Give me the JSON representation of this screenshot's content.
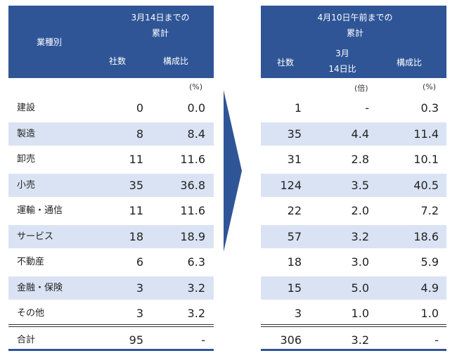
{
  "left_table": {
    "header": {
      "industry_label": "業種別",
      "period_label": "3月14日までの\n累計",
      "count_label": "社数",
      "ratio_label": "構成比"
    },
    "unit_ratio": "(%)",
    "rows": [
      {
        "label": "建設",
        "count": "0",
        "ratio": "0.0"
      },
      {
        "label": "製造",
        "count": "8",
        "ratio": "8.4"
      },
      {
        "label": "卸売",
        "count": "11",
        "ratio": "11.6"
      },
      {
        "label": "小売",
        "count": "35",
        "ratio": "36.8"
      },
      {
        "label": "運輸・通信",
        "count": "11",
        "ratio": "11.6"
      },
      {
        "label": "サービス",
        "count": "18",
        "ratio": "18.9"
      },
      {
        "label": "不動産",
        "count": "6",
        "ratio": "6.3"
      },
      {
        "label": "金融・保険",
        "count": "3",
        "ratio": "3.2"
      },
      {
        "label": "その他",
        "count": "3",
        "ratio": "3.2"
      }
    ],
    "total": {
      "label": "合計",
      "count": "95",
      "ratio": "-"
    }
  },
  "right_table": {
    "header": {
      "period_label": "4月10日午前までの\n累計",
      "count_label": "社数",
      "vs_label": "3月\n14日比",
      "ratio_label": "構成比"
    },
    "unit_vs": "(倍)",
    "unit_ratio": "(%)",
    "rows": [
      {
        "count": "1",
        "vs": "-",
        "ratio": "0.3"
      },
      {
        "count": "35",
        "vs": "4.4",
        "ratio": "11.4"
      },
      {
        "count": "31",
        "vs": "2.8",
        "ratio": "10.1"
      },
      {
        "count": "124",
        "vs": "3.5",
        "ratio": "40.5"
      },
      {
        "count": "22",
        "vs": "2.0",
        "ratio": "7.2"
      },
      {
        "count": "57",
        "vs": "3.2",
        "ratio": "18.6"
      },
      {
        "count": "18",
        "vs": "3.0",
        "ratio": "5.9"
      },
      {
        "count": "15",
        "vs": "5.0",
        "ratio": "4.9"
      },
      {
        "count": "3",
        "vs": "1.0",
        "ratio": "1.0"
      }
    ],
    "total": {
      "count": "306",
      "vs": "3.2",
      "ratio": "-"
    }
  },
  "colors": {
    "header_bg": "#2f5597",
    "row_shade": "#dae3f3",
    "arrow": "#2f5597"
  }
}
